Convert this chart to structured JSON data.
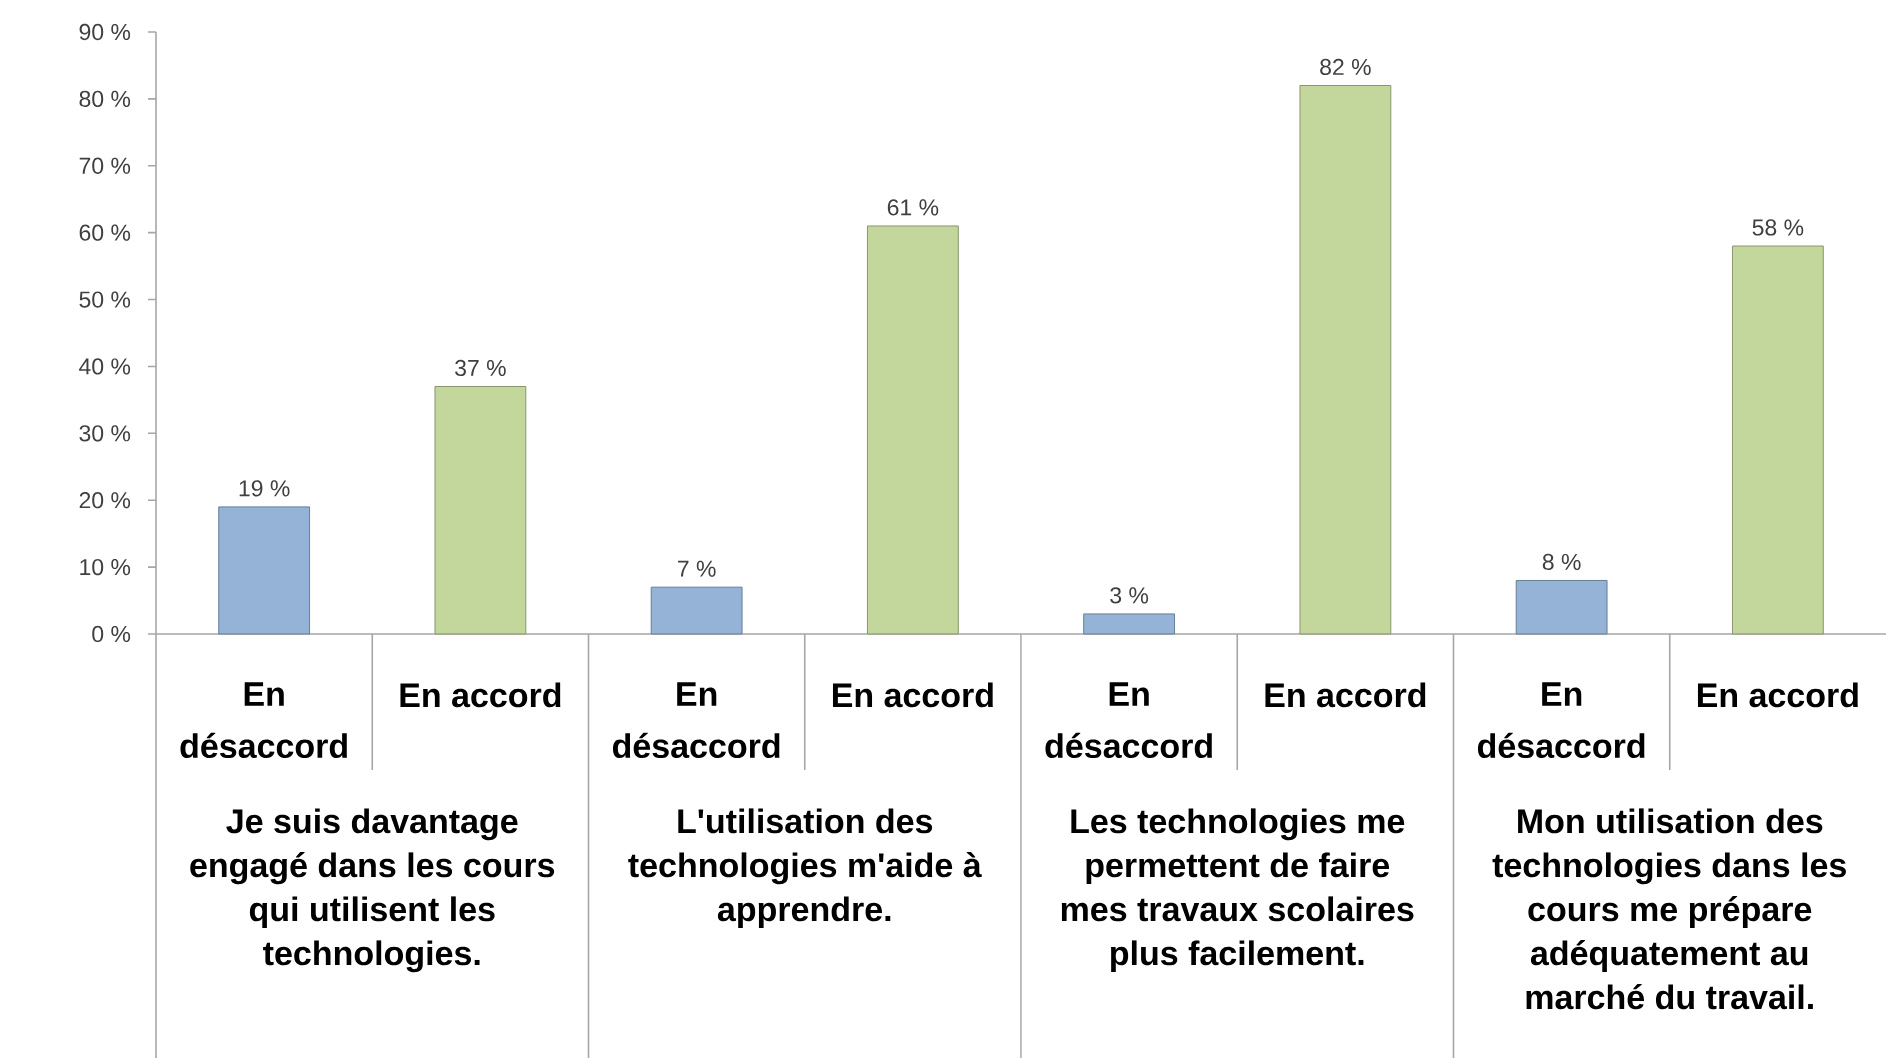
{
  "chart_data": {
    "type": "bar",
    "categories": [
      "Je suis davantage engagé dans les cours qui utilisent les technologies.",
      "L'utilisation des technologies m'aide à apprendre.",
      "Les technologies me permettent de faire mes travaux scolaires plus facilement.",
      "Mon utilisation des technologies dans les cours me prépare adéquatement au marché du travail."
    ],
    "series": [
      {
        "name": "En désaccord",
        "color": "#95b3d7",
        "values": [
          19,
          7,
          3,
          8
        ],
        "value_labels": [
          "19 %",
          "7 %",
          "3 %",
          "8 %"
        ]
      },
      {
        "name": "En accord",
        "color": "#c3d69b",
        "values": [
          37,
          61,
          82,
          58
        ],
        "value_labels": [
          "37 %",
          "61 %",
          "82 %",
          "58 %"
        ]
      }
    ],
    "ylim": [
      0,
      90
    ],
    "yticks": [
      {
        "value": 0,
        "label": "0 %"
      },
      {
        "value": 10,
        "label": "10 %"
      },
      {
        "value": 20,
        "label": "20 %"
      },
      {
        "value": 30,
        "label": "30 %"
      },
      {
        "value": 40,
        "label": "40 %"
      },
      {
        "value": 50,
        "label": "50 %"
      },
      {
        "value": 60,
        "label": "60 %"
      },
      {
        "value": 70,
        "label": "70 %"
      },
      {
        "value": 80,
        "label": "80 %"
      },
      {
        "value": 90,
        "label": "90 %"
      }
    ]
  }
}
